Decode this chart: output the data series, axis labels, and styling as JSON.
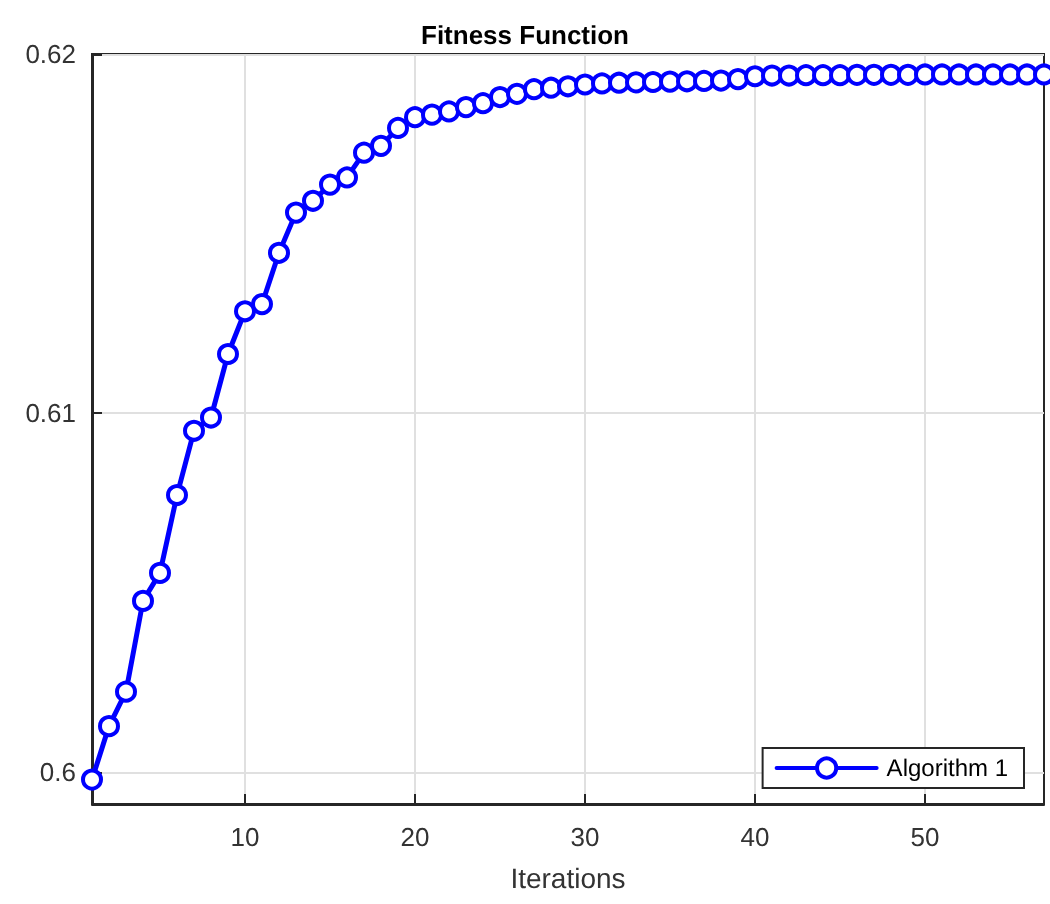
{
  "chart_data": {
    "type": "line",
    "title": "Fitness Function",
    "xlabel": "Iterations",
    "x": [
      1,
      2,
      3,
      4,
      5,
      6,
      7,
      8,
      9,
      10,
      11,
      12,
      13,
      14,
      15,
      16,
      17,
      18,
      19,
      20,
      21,
      22,
      23,
      24,
      25,
      26,
      27,
      28,
      29,
      30,
      31,
      32,
      33,
      34,
      35,
      36,
      37,
      38,
      39,
      40,
      41,
      42,
      43,
      44,
      45,
      46,
      47,
      48,
      49,
      50,
      51,
      52,
      53,
      54,
      55,
      56,
      57
    ],
    "series": [
      {
        "name": "Algorithm 1",
        "color": "#0000ff",
        "values": [
          0.59978,
          0.60127,
          0.60223,
          0.60476,
          0.60554,
          0.60771,
          0.6095,
          0.60987,
          0.61164,
          0.61283,
          0.61303,
          0.61446,
          0.61558,
          0.61591,
          0.61636,
          0.61656,
          0.61725,
          0.61744,
          0.61794,
          0.61824,
          0.61831,
          0.6184,
          0.61852,
          0.61863,
          0.6188,
          0.61889,
          0.61902,
          0.61906,
          0.6191,
          0.61915,
          0.61918,
          0.6192,
          0.61921,
          0.61922,
          0.61923,
          0.61924,
          0.61925,
          0.61926,
          0.6193,
          0.61938,
          0.6194,
          0.6194,
          0.61941,
          0.61941,
          0.61941,
          0.61942,
          0.61942,
          0.61942,
          0.61942,
          0.61943,
          0.61943,
          0.61943,
          0.61943,
          0.61943,
          0.61943,
          0.61943,
          0.61943
        ]
      }
    ],
    "xlim": [
      1,
      57
    ],
    "xticks": [
      10,
      20,
      30,
      40,
      50
    ],
    "ylim": [
      0.5991,
      0.62
    ],
    "yticks": [
      0.6,
      0.61,
      0.62
    ],
    "grid": true,
    "legend": "bottom right",
    "marker": "circle",
    "line_style": "solid"
  }
}
